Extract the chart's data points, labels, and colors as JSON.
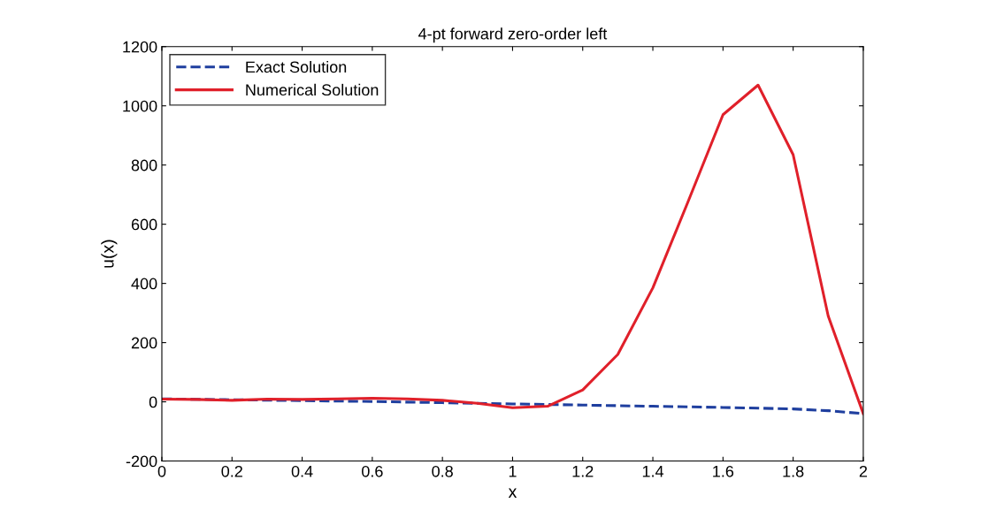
{
  "chart_data": {
    "type": "line",
    "title": "4-pt forward zero-order left",
    "xlabel": "x",
    "ylabel": "u(x)",
    "xlim": [
      0,
      2
    ],
    "xticks": [
      0,
      0.2,
      0.4,
      0.6,
      0.8,
      1,
      1.2,
      1.4,
      1.6,
      1.8,
      2
    ],
    "ylim": [
      -200,
      1200
    ],
    "yticks": [
      -200,
      0,
      200,
      400,
      600,
      800,
      1000,
      1200
    ],
    "grid": false,
    "legend": "top left",
    "series": [
      {
        "name": "Exact Solution",
        "color": "#1f3f9f",
        "line_style": "dashed",
        "x": [
          0,
          0.2,
          0.4,
          0.6,
          0.8,
          1,
          1.2,
          1.4,
          1.6,
          1.8,
          1.9,
          2
        ],
        "values": [
          10,
          7,
          4,
          1,
          -3,
          -7,
          -11,
          -15,
          -19,
          -24,
          -30,
          -40
        ]
      },
      {
        "name": "Numerical Solution",
        "color": "#e0202a",
        "line_style": "solid",
        "x": [
          0,
          0.1,
          0.2,
          0.3,
          0.4,
          0.5,
          0.6,
          0.7,
          0.8,
          0.9,
          1,
          1.1,
          1.2,
          1.3,
          1.4,
          1.5,
          1.6,
          1.7,
          1.8,
          1.9,
          2
        ],
        "values": [
          9,
          8,
          5,
          9,
          8,
          10,
          12,
          10,
          5,
          -5,
          -20,
          -15,
          40,
          160,
          385,
          675,
          970,
          1070,
          835,
          290,
          -40
        ]
      }
    ]
  }
}
